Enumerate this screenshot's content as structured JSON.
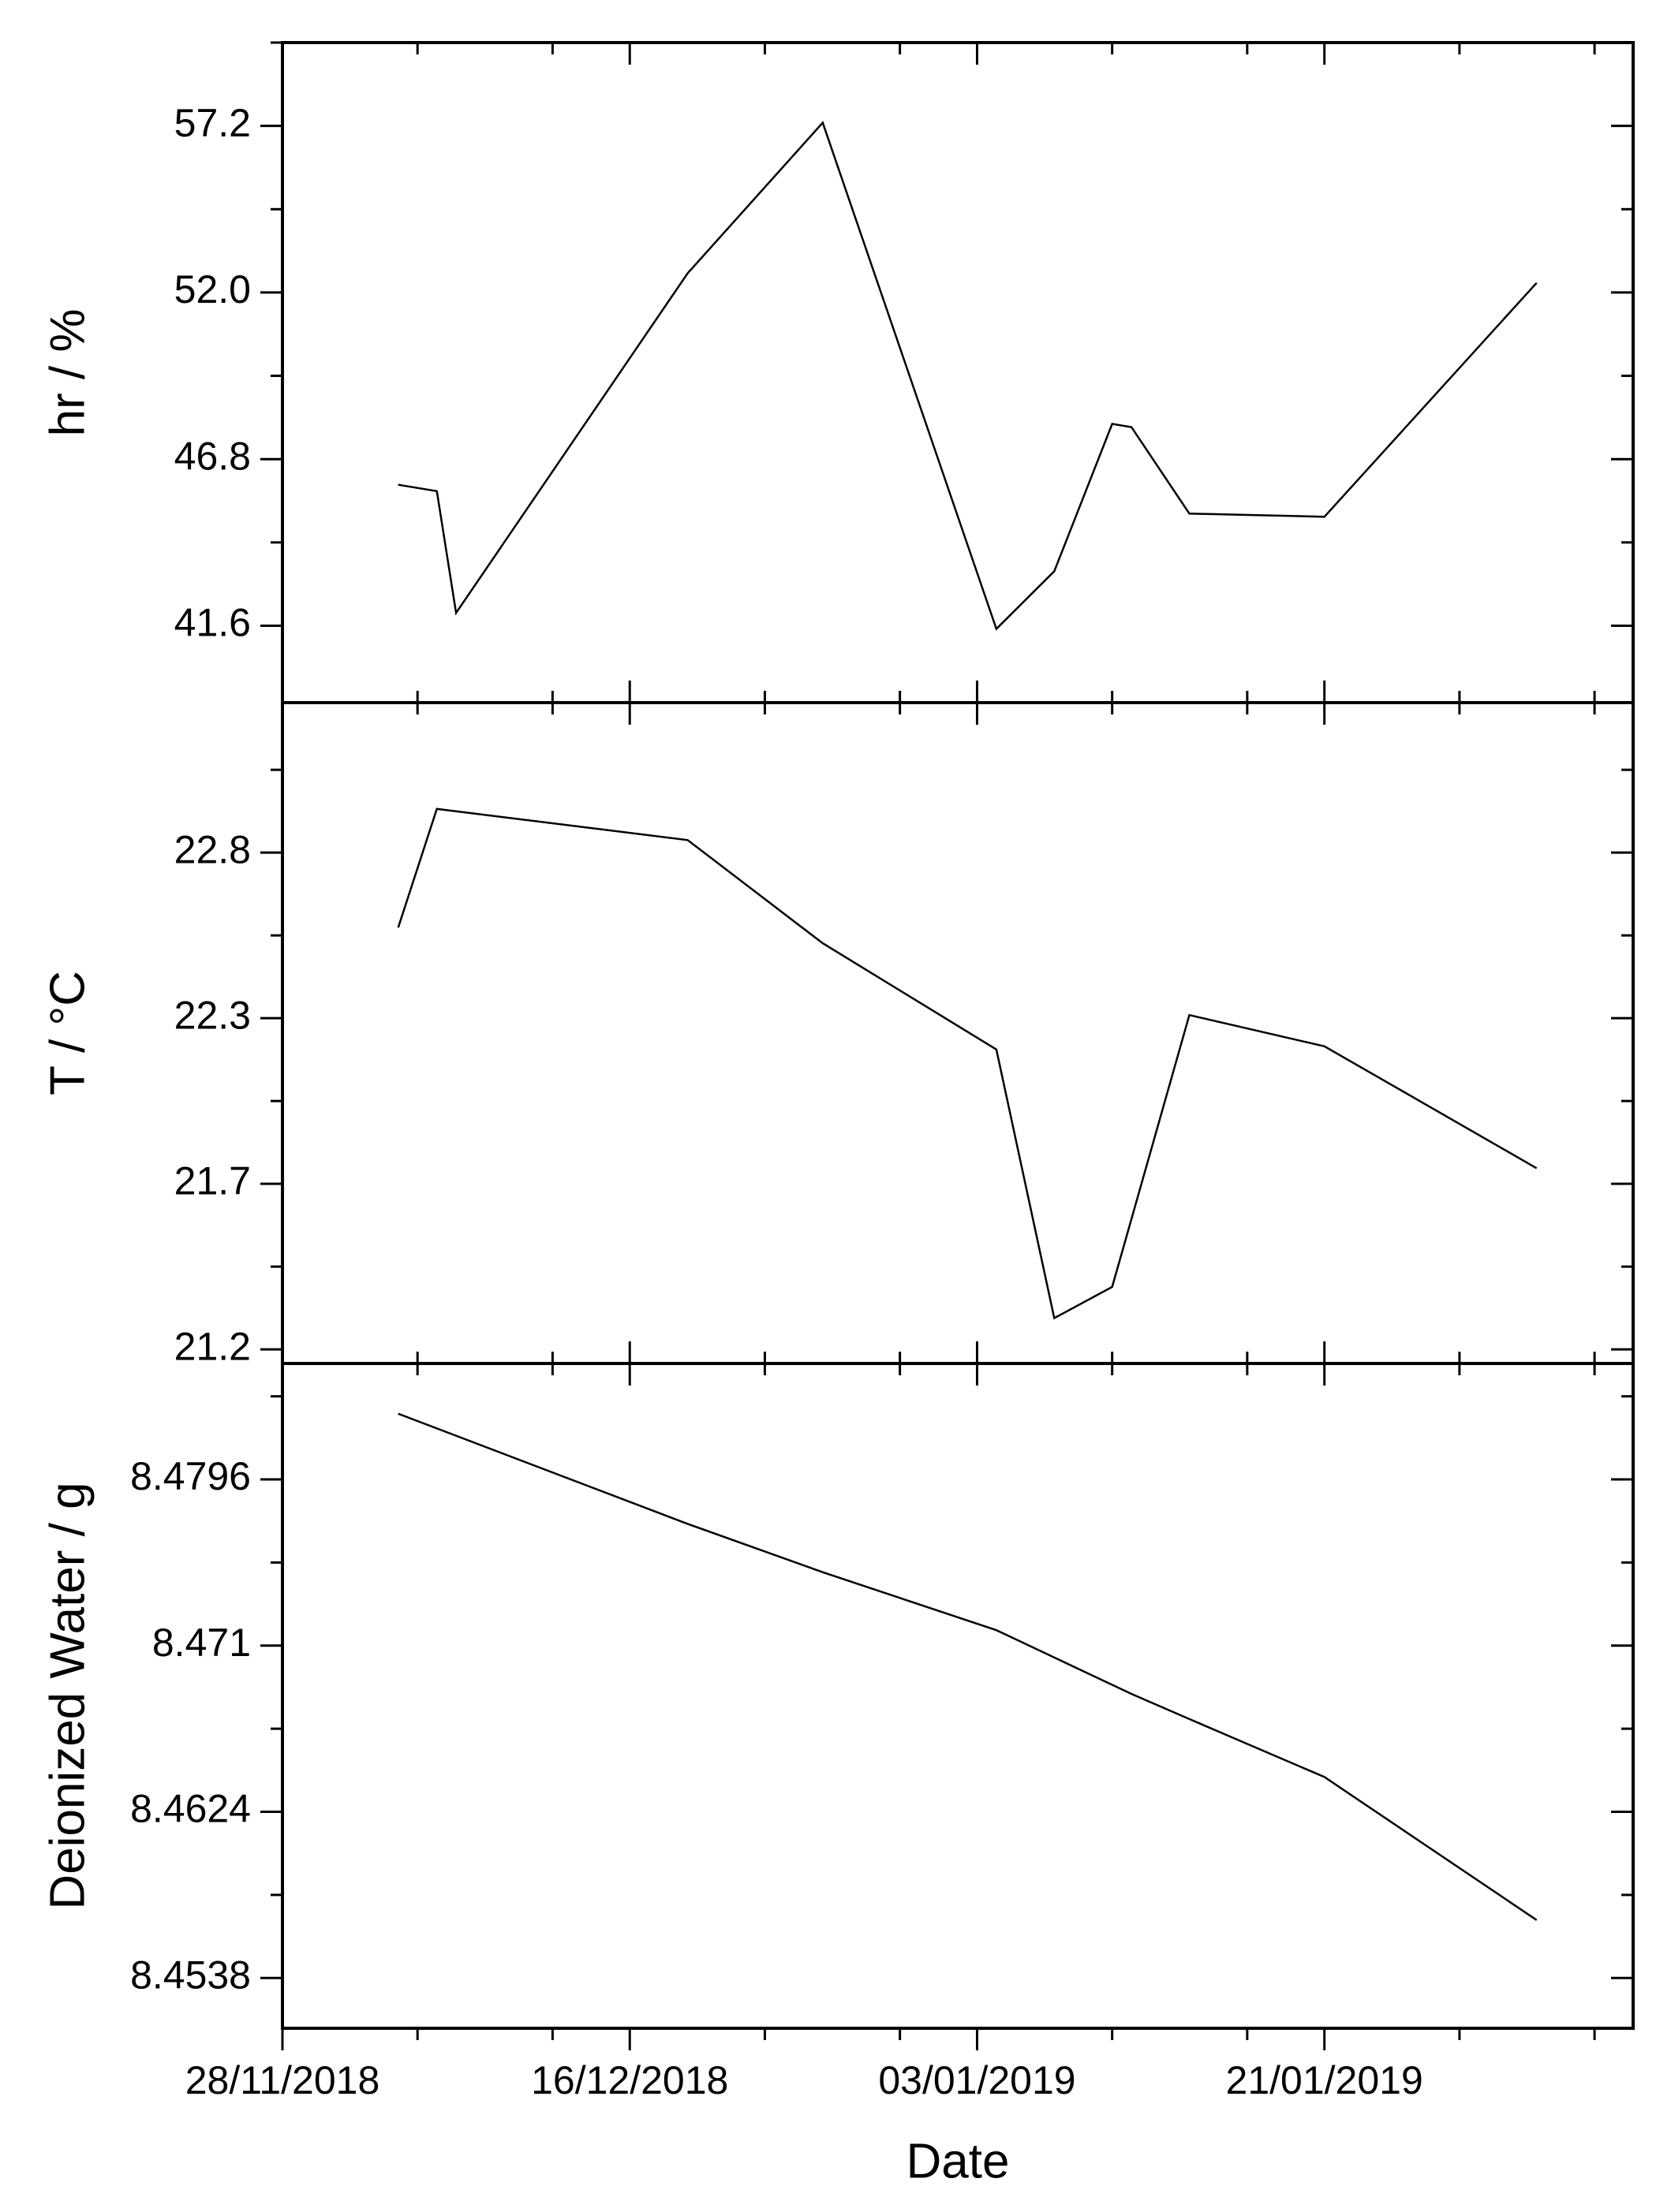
{
  "chart_data": [
    {
      "type": "line",
      "ylabel": "hr / %",
      "color": "#000000",
      "x": [
        "04/12/2018",
        "06/12/2018",
        "07/12/2018",
        "19/12/2018",
        "26/12/2018",
        "04/01/2019",
        "07/01/2019",
        "10/01/2019",
        "11/01/2019",
        "14/01/2019",
        "21/01/2019",
        "01/02/2019"
      ],
      "values": [
        46.0,
        45.8,
        42.0,
        52.6,
        57.3,
        41.5,
        43.3,
        47.9,
        47.8,
        45.1,
        45.0,
        52.3
      ],
      "ylim": [
        39.2,
        59.8
      ],
      "yticks": [
        {
          "value": 41.6,
          "label": "41.6"
        },
        {
          "value": 46.8,
          "label": "46.8"
        },
        {
          "value": 52,
          "label": "52.0"
        },
        {
          "value": 57.2,
          "label": "57.2"
        }
      ],
      "yminorticks": [
        44.2,
        49.4,
        54.6,
        59.8
      ]
    },
    {
      "type": "line",
      "ylabel": "T / °C",
      "color": "#000000",
      "x": [
        "04/12/2018",
        "06/12/2018",
        "19/12/2018",
        "26/12/2018",
        "04/01/2019",
        "07/01/2019",
        "10/01/2019",
        "14/01/2019",
        "21/01/2019",
        "01/02/2019"
      ],
      "values": [
        22.55,
        22.93,
        22.83,
        22.5,
        22.16,
        21.3,
        21.4,
        22.27,
        22.17,
        21.78
      ],
      "ylim": [
        21.155,
        23.27
      ],
      "yticks": [
        {
          "value": 21.2,
          "label": "21.2"
        },
        {
          "value": 21.73,
          "label": "21.7"
        },
        {
          "value": 22.26,
          "label": "22.3"
        },
        {
          "value": 22.79,
          "label": "22.8"
        }
      ],
      "yminorticks": [
        21.465,
        21.995,
        22.525,
        23.055
      ]
    },
    {
      "type": "line",
      "ylabel": "Deionized Water / g",
      "xlabel": "Date",
      "color": "#000000",
      "x": [
        "04/12/2018",
        "19/12/2018",
        "26/12/2018",
        "04/01/2019",
        "11/01/2019",
        "14/01/2019",
        "21/01/2019",
        "01/02/2019"
      ],
      "values": [
        8.483,
        8.4773,
        8.4748,
        8.4718,
        8.4685,
        8.4672,
        8.4642,
        8.4568
      ],
      "ylim": [
        8.4512,
        8.4856
      ],
      "yticks": [
        8.4538,
        8.4624,
        8.471,
        8.4796
      ],
      "yminorticks": [
        8.4581,
        8.4667,
        8.4753,
        8.4839
      ],
      "xlim": [
        "28/11/2018",
        "06/02/2019"
      ],
      "xticks": [
        "28/11/2018",
        "16/12/2018",
        "03/01/2019",
        "21/01/2019"
      ],
      "xminorticks": [
        "05/12/2018",
        "12/12/2018",
        "23/12/2018",
        "30/12/2018",
        "10/01/2019",
        "17/01/2019",
        "28/01/2019",
        "04/02/2019"
      ]
    }
  ]
}
